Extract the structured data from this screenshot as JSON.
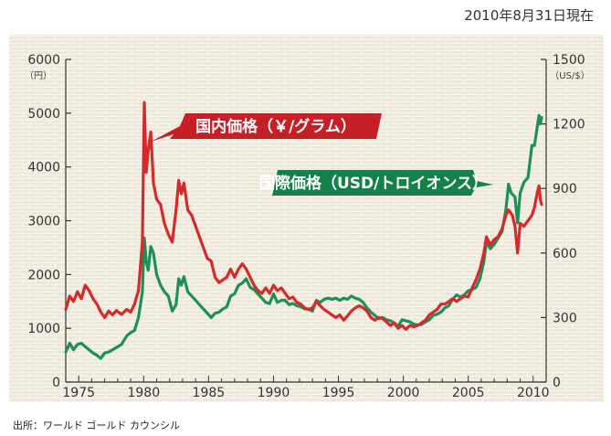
{
  "header": {
    "date": "2010年8月31日現在"
  },
  "source": "出所：ワールド ゴールド カウンシル",
  "chart_data": {
    "type": "line",
    "title": "",
    "x_axis": {
      "range": [
        1974,
        2011
      ],
      "ticks": [
        1975,
        1980,
        1985,
        1990,
        1995,
        2000,
        2005,
        2010
      ],
      "tick_labels": [
        "1975",
        "1980",
        "1985",
        "1990",
        "1995",
        "2000",
        "2005",
        "2010"
      ]
    },
    "y_axis_left": {
      "unit": "（円）",
      "range": [
        0,
        6000
      ],
      "ticks": [
        0,
        1000,
        2000,
        3000,
        4000,
        5000,
        6000
      ],
      "tick_labels": [
        "0",
        "1000",
        "2000",
        "3000",
        "4000",
        "5000",
        "6000"
      ]
    },
    "y_axis_right": {
      "unit": "（US/$）",
      "range": [
        0,
        1500
      ],
      "ticks": [
        0,
        300,
        600,
        900,
        1200,
        1500
      ],
      "tick_labels": [
        "0",
        "300",
        "600",
        "900",
        "1200",
        "1500"
      ]
    },
    "grid": false,
    "legend": "inline-labels",
    "series": [
      {
        "name": "国内価格（￥/グラム）",
        "axis": "left",
        "color": "#d42a2a",
        "label_color": "#c62026",
        "points": [
          [
            1974.0,
            1350
          ],
          [
            1974.3,
            1600
          ],
          [
            1974.6,
            1500
          ],
          [
            1974.9,
            1680
          ],
          [
            1975.2,
            1550
          ],
          [
            1975.5,
            1800
          ],
          [
            1975.8,
            1700
          ],
          [
            1976.1,
            1550
          ],
          [
            1976.4,
            1450
          ],
          [
            1976.7,
            1300
          ],
          [
            1977.0,
            1200
          ],
          [
            1977.3,
            1320
          ],
          [
            1977.6,
            1250
          ],
          [
            1977.9,
            1330
          ],
          [
            1978.3,
            1260
          ],
          [
            1978.7,
            1350
          ],
          [
            1979.0,
            1300
          ],
          [
            1979.3,
            1450
          ],
          [
            1979.6,
            1700
          ],
          [
            1979.9,
            2600
          ],
          [
            1980.05,
            5200
          ],
          [
            1980.2,
            3900
          ],
          [
            1980.35,
            4300
          ],
          [
            1980.55,
            4650
          ],
          [
            1980.75,
            3700
          ],
          [
            1981.0,
            3400
          ],
          [
            1981.3,
            3300
          ],
          [
            1981.6,
            2950
          ],
          [
            1981.9,
            2750
          ],
          [
            1982.2,
            2600
          ],
          [
            1982.5,
            3200
          ],
          [
            1982.7,
            3750
          ],
          [
            1982.9,
            3500
          ],
          [
            1983.1,
            3700
          ],
          [
            1983.4,
            3200
          ],
          [
            1983.7,
            3100
          ],
          [
            1984.0,
            2900
          ],
          [
            1984.3,
            2700
          ],
          [
            1984.6,
            2500
          ],
          [
            1984.9,
            2300
          ],
          [
            1985.2,
            2250
          ],
          [
            1985.5,
            1950
          ],
          [
            1985.8,
            1850
          ],
          [
            1986.1,
            1900
          ],
          [
            1986.4,
            1950
          ],
          [
            1986.7,
            2100
          ],
          [
            1987.0,
            1950
          ],
          [
            1987.3,
            2100
          ],
          [
            1987.6,
            2200
          ],
          [
            1987.9,
            2100
          ],
          [
            1988.2,
            1950
          ],
          [
            1988.5,
            1800
          ],
          [
            1988.8,
            1700
          ],
          [
            1989.1,
            1650
          ],
          [
            1989.4,
            1750
          ],
          [
            1989.7,
            1650
          ],
          [
            1990.0,
            1800
          ],
          [
            1990.3,
            1700
          ],
          [
            1990.6,
            1750
          ],
          [
            1990.9,
            1650
          ],
          [
            1991.2,
            1550
          ],
          [
            1991.5,
            1580
          ],
          [
            1991.8,
            1480
          ],
          [
            1992.1,
            1450
          ],
          [
            1992.4,
            1380
          ],
          [
            1992.7,
            1350
          ],
          [
            1993.0,
            1380
          ],
          [
            1993.3,
            1500
          ],
          [
            1993.6,
            1420
          ],
          [
            1993.9,
            1350
          ],
          [
            1994.2,
            1300
          ],
          [
            1994.5,
            1250
          ],
          [
            1994.8,
            1200
          ],
          [
            1995.1,
            1250
          ],
          [
            1995.4,
            1150
          ],
          [
            1995.7,
            1230
          ],
          [
            1996.0,
            1320
          ],
          [
            1996.3,
            1380
          ],
          [
            1996.6,
            1420
          ],
          [
            1996.9,
            1380
          ],
          [
            1997.2,
            1320
          ],
          [
            1997.5,
            1200
          ],
          [
            1997.8,
            1150
          ],
          [
            1998.1,
            1200
          ],
          [
            1998.4,
            1180
          ],
          [
            1998.7,
            1120
          ],
          [
            1999.0,
            1050
          ],
          [
            1999.3,
            1100
          ],
          [
            1999.6,
            1000
          ],
          [
            1999.9,
            1050
          ],
          [
            2000.2,
            980
          ],
          [
            2000.5,
            1050
          ],
          [
            2000.8,
            1030
          ],
          [
            2001.1,
            1050
          ],
          [
            2001.4,
            1100
          ],
          [
            2001.7,
            1150
          ],
          [
            2002.0,
            1250
          ],
          [
            2002.3,
            1300
          ],
          [
            2002.6,
            1350
          ],
          [
            2002.9,
            1450
          ],
          [
            2003.2,
            1450
          ],
          [
            2003.5,
            1500
          ],
          [
            2003.8,
            1550
          ],
          [
            2004.1,
            1500
          ],
          [
            2004.4,
            1550
          ],
          [
            2004.7,
            1600
          ],
          [
            2005.0,
            1580
          ],
          [
            2005.3,
            1750
          ],
          [
            2005.6,
            1900
          ],
          [
            2005.9,
            2100
          ],
          [
            2006.2,
            2400
          ],
          [
            2006.4,
            2700
          ],
          [
            2006.7,
            2550
          ],
          [
            2007.0,
            2650
          ],
          [
            2007.3,
            2700
          ],
          [
            2007.6,
            2850
          ],
          [
            2007.9,
            3100
          ],
          [
            2008.1,
            3200
          ],
          [
            2008.4,
            3100
          ],
          [
            2008.6,
            2900
          ],
          [
            2008.8,
            2400
          ],
          [
            2009.0,
            2950
          ],
          [
            2009.3,
            2900
          ],
          [
            2009.6,
            3000
          ],
          [
            2009.9,
            3100
          ],
          [
            2010.1,
            3250
          ],
          [
            2010.3,
            3500
          ],
          [
            2010.45,
            3650
          ],
          [
            2010.55,
            3400
          ],
          [
            2010.65,
            3300
          ]
        ]
      },
      {
        "name": "国際価格（USD/トロイオンス）",
        "axis": "right",
        "color": "#1f8f58",
        "label_color": "#14804a",
        "points": [
          [
            1974.0,
            140
          ],
          [
            1974.3,
            180
          ],
          [
            1974.6,
            150
          ],
          [
            1974.9,
            175
          ],
          [
            1975.2,
            180
          ],
          [
            1975.5,
            165
          ],
          [
            1975.8,
            150
          ],
          [
            1976.1,
            135
          ],
          [
            1976.4,
            125
          ],
          [
            1976.7,
            110
          ],
          [
            1977.0,
            135
          ],
          [
            1977.3,
            140
          ],
          [
            1977.6,
            150
          ],
          [
            1977.9,
            160
          ],
          [
            1978.3,
            175
          ],
          [
            1978.7,
            215
          ],
          [
            1979.0,
            230
          ],
          [
            1979.3,
            240
          ],
          [
            1979.6,
            300
          ],
          [
            1979.9,
            420
          ],
          [
            1980.05,
            670
          ],
          [
            1980.2,
            560
          ],
          [
            1980.35,
            520
          ],
          [
            1980.55,
            630
          ],
          [
            1980.75,
            600
          ],
          [
            1981.0,
            500
          ],
          [
            1981.3,
            450
          ],
          [
            1981.6,
            420
          ],
          [
            1981.9,
            400
          ],
          [
            1982.2,
            330
          ],
          [
            1982.5,
            360
          ],
          [
            1982.7,
            480
          ],
          [
            1982.9,
            450
          ],
          [
            1983.1,
            490
          ],
          [
            1983.4,
            420
          ],
          [
            1983.7,
            400
          ],
          [
            1984.0,
            380
          ],
          [
            1984.3,
            360
          ],
          [
            1984.6,
            340
          ],
          [
            1984.9,
            320
          ],
          [
            1985.2,
            300
          ],
          [
            1985.5,
            320
          ],
          [
            1985.8,
            325
          ],
          [
            1986.1,
            340
          ],
          [
            1986.4,
            350
          ],
          [
            1986.7,
            400
          ],
          [
            1987.0,
            410
          ],
          [
            1987.3,
            450
          ],
          [
            1987.6,
            460
          ],
          [
            1987.9,
            480
          ],
          [
            1988.2,
            440
          ],
          [
            1988.5,
            430
          ],
          [
            1988.8,
            410
          ],
          [
            1989.1,
            390
          ],
          [
            1989.4,
            370
          ],
          [
            1989.7,
            365
          ],
          [
            1990.0,
            410
          ],
          [
            1990.3,
            370
          ],
          [
            1990.6,
            380
          ],
          [
            1990.9,
            380
          ],
          [
            1991.2,
            360
          ],
          [
            1991.5,
            365
          ],
          [
            1991.8,
            355
          ],
          [
            1992.1,
            350
          ],
          [
            1992.4,
            340
          ],
          [
            1992.7,
            340
          ],
          [
            1993.0,
            330
          ],
          [
            1993.3,
            380
          ],
          [
            1993.6,
            370
          ],
          [
            1993.9,
            385
          ],
          [
            1994.2,
            390
          ],
          [
            1994.5,
            385
          ],
          [
            1994.8,
            390
          ],
          [
            1995.1,
            380
          ],
          [
            1995.4,
            390
          ],
          [
            1995.7,
            385
          ],
          [
            1996.0,
            400
          ],
          [
            1996.3,
            390
          ],
          [
            1996.6,
            385
          ],
          [
            1996.9,
            370
          ],
          [
            1997.2,
            345
          ],
          [
            1997.5,
            325
          ],
          [
            1997.8,
            310
          ],
          [
            1998.1,
            295
          ],
          [
            1998.4,
            300
          ],
          [
            1998.7,
            290
          ],
          [
            1999.0,
            285
          ],
          [
            1999.3,
            275
          ],
          [
            1999.6,
            260
          ],
          [
            1999.9,
            290
          ],
          [
            2000.2,
            285
          ],
          [
            2000.5,
            280
          ],
          [
            2000.8,
            270
          ],
          [
            2001.1,
            265
          ],
          [
            2001.4,
            268
          ],
          [
            2001.7,
            280
          ],
          [
            2002.0,
            290
          ],
          [
            2002.3,
            310
          ],
          [
            2002.6,
            315
          ],
          [
            2002.9,
            325
          ],
          [
            2003.2,
            345
          ],
          [
            2003.5,
            355
          ],
          [
            2003.8,
            385
          ],
          [
            2004.1,
            405
          ],
          [
            2004.4,
            395
          ],
          [
            2004.7,
            405
          ],
          [
            2005.0,
            425
          ],
          [
            2005.3,
            430
          ],
          [
            2005.6,
            440
          ],
          [
            2005.9,
            480
          ],
          [
            2006.2,
            560
          ],
          [
            2006.4,
            650
          ],
          [
            2006.7,
            620
          ],
          [
            2007.0,
            640
          ],
          [
            2007.3,
            670
          ],
          [
            2007.6,
            700
          ],
          [
            2007.9,
            800
          ],
          [
            2008.1,
            920
          ],
          [
            2008.3,
            880
          ],
          [
            2008.6,
            860
          ],
          [
            2008.8,
            740
          ],
          [
            2009.0,
            880
          ],
          [
            2009.3,
            930
          ],
          [
            2009.6,
            950
          ],
          [
            2009.9,
            1100
          ],
          [
            2010.1,
            1100
          ],
          [
            2010.3,
            1180
          ],
          [
            2010.45,
            1240
          ],
          [
            2010.55,
            1200
          ],
          [
            2010.65,
            1230
          ]
        ]
      }
    ],
    "annotations": [
      {
        "text": "国内価格（￥/グラム）",
        "series": 0
      },
      {
        "text": "国際価格（USD/トロイオンス）",
        "series": 1
      }
    ]
  }
}
